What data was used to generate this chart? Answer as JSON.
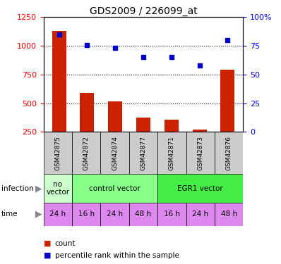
{
  "title": "GDS2009 / 226099_at",
  "samples": [
    "GSM42875",
    "GSM42872",
    "GSM42874",
    "GSM42877",
    "GSM42871",
    "GSM42873",
    "GSM42876"
  ],
  "counts": [
    1130,
    590,
    515,
    375,
    355,
    270,
    790
  ],
  "percentile_ranks": [
    85,
    76,
    73,
    65,
    65,
    58,
    80
  ],
  "ylim_left": [
    250,
    1250
  ],
  "ylim_right": [
    0,
    100
  ],
  "yticks_left": [
    250,
    500,
    750,
    1000,
    1250
  ],
  "yticks_right": [
    0,
    25,
    50,
    75,
    100
  ],
  "ytick_labels_right": [
    "0",
    "25",
    "50",
    "75",
    "100%"
  ],
  "infection_groups": [
    {
      "label": "no\nvector",
      "color": "#ccffcc",
      "start": 0,
      "end": 1
    },
    {
      "label": "control vector",
      "color": "#88ff88",
      "start": 1,
      "end": 4
    },
    {
      "label": "EGR1 vector",
      "color": "#44ee44",
      "start": 4,
      "end": 7
    }
  ],
  "time_labels": [
    "24 h",
    "16 h",
    "24 h",
    "48 h",
    "16 h",
    "24 h",
    "48 h"
  ],
  "time_color": "#dd88ee",
  "bar_color": "#cc2200",
  "scatter_color": "#0000cc",
  "infection_label": "infection",
  "time_label": "time",
  "legend_count_label": "count",
  "legend_pct_label": "percentile rank within the sample",
  "sample_bg_color": "#cccccc",
  "arrow_color": "#888888"
}
